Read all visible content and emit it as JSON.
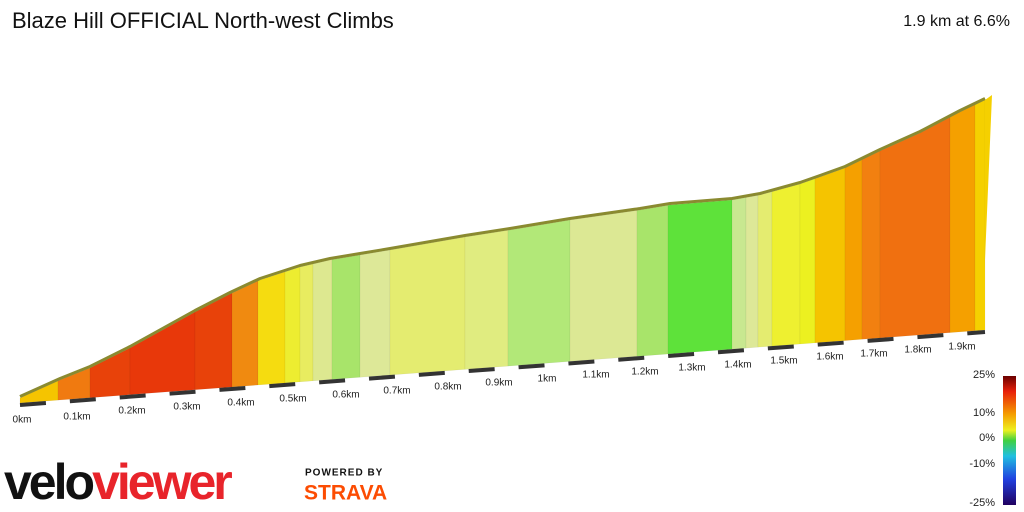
{
  "header": {
    "title": "Blaze Hill OFFICIAL North-west Climbs",
    "summary": "1.9 km at 6.6%"
  },
  "distance_ticks": [
    "0km",
    "0.1km",
    "0.2km",
    "0.3km",
    "0.4km",
    "0.5km",
    "0.6km",
    "0.7km",
    "0.8km",
    "0.9km",
    "1km",
    "1.1km",
    "1.2km",
    "1.3km",
    "1.4km",
    "1.5km",
    "1.6km",
    "1.7km",
    "1.8km",
    "1.9km"
  ],
  "gradient_legend": [
    "25%",
    "10%",
    "0%",
    "-10%",
    "-25%"
  ],
  "logo": {
    "velo": "velo",
    "viewer": "viewer",
    "powered_by": "POWERED BY",
    "strava": "STRAVA"
  }
}
